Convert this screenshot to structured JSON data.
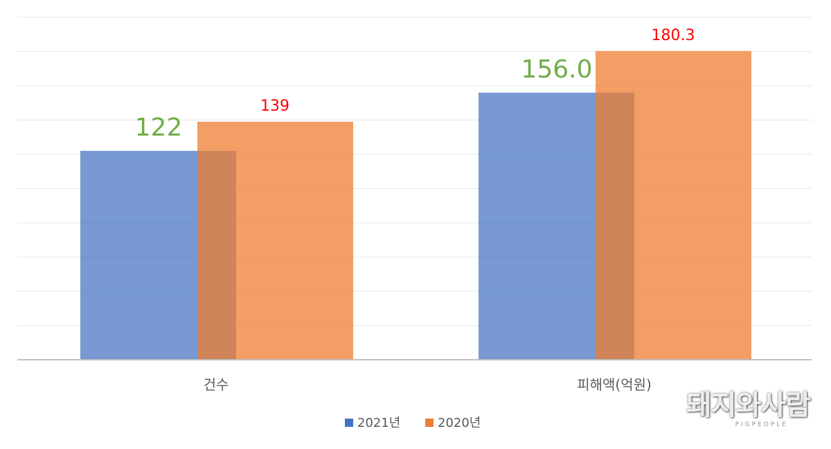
{
  "chart_data": {
    "type": "bar",
    "categories": [
      "건수",
      "피해액(억원)"
    ],
    "series": [
      {
        "name": "2021년",
        "values": [
          122,
          156.0
        ],
        "labels": [
          "122",
          "156.0"
        ],
        "color": "#4472c4",
        "label_color": "#70ad47"
      },
      {
        "name": "2020년",
        "values": [
          139,
          180.3
        ],
        "labels": [
          "139",
          "180.3"
        ],
        "color": "#ed7d31",
        "label_color": "#ff0000"
      }
    ],
    "grid": true,
    "legend_position": "bottom"
  },
  "watermark": {
    "text": "돼지와사람",
    "subtext": "PIGPEOPLE"
  }
}
